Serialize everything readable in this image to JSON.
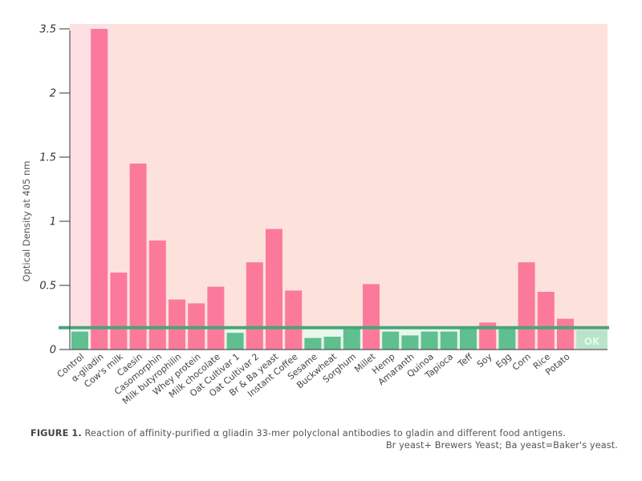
{
  "chart_data": {
    "type": "bar",
    "title": "",
    "xlabel": "",
    "ylabel": "Optical Density at 405 nm",
    "ylim": [
      0,
      3.5
    ],
    "y_ticks": [
      {
        "value": 0,
        "label": "0"
      },
      {
        "value": 0.5,
        "label": "0.5"
      },
      {
        "value": 1,
        "label": "1"
      },
      {
        "value": 1.5,
        "label": "1.5"
      },
      {
        "value": 2,
        "label": "2"
      },
      {
        "value": 3.5,
        "label": "3.5"
      }
    ],
    "y_axis_note": "axis break between 2 and 3.5 (3.5 plotted one tick-step above 2)",
    "threshold": 0.17,
    "threshold_label": "OK",
    "grid": false,
    "categories": [
      "Control",
      "α-gliadin",
      "Cow's milk",
      "Caesin",
      "Casomorphin",
      "Milk butyrophilin",
      "Whey protein",
      "Milk chocolate",
      "Oat Cultivar 1",
      "Oat Cultivar 2",
      "Br & Ba yeast",
      "Instant Coffee",
      "Sesame",
      "Buckwheat",
      "Sorghum",
      "Millet",
      "Hemp",
      "Amaranth",
      "Quinoa",
      "Tapioca",
      "Teff",
      "Soy",
      "Egg",
      "Corn",
      "Rice",
      "Potato"
    ],
    "values": [
      0.14,
      3.5,
      0.6,
      1.45,
      0.85,
      0.39,
      0.36,
      0.49,
      0.13,
      0.68,
      0.94,
      0.46,
      0.09,
      0.1,
      0.16,
      0.51,
      0.14,
      0.11,
      0.14,
      0.14,
      0.16,
      0.21,
      0.16,
      0.68,
      0.45,
      0.24
    ],
    "reactive": [
      false,
      true,
      true,
      true,
      true,
      true,
      true,
      true,
      false,
      true,
      true,
      true,
      false,
      false,
      false,
      true,
      false,
      false,
      false,
      false,
      false,
      true,
      false,
      true,
      true,
      true
    ]
  },
  "colors": {
    "reactive_bar": "#fb7a9c",
    "nonreactive_bar": "#5fbf8f",
    "threshold_line": "#4aa57a",
    "plot_bg": "#fde2dc",
    "plot_bg_first": "#fde0e3",
    "safe_zone": "#e6f7ec",
    "ok_box": "#b9e4cb"
  },
  "caption": {
    "label": "FIGURE 1.",
    "text": " Reaction of affinity-purified α gliadin 33-mer polyclonal antibodies to gladin and different food antigens.",
    "line2": "Br yeast+ Brewers Yeast; Ba yeast=Baker's yeast."
  }
}
